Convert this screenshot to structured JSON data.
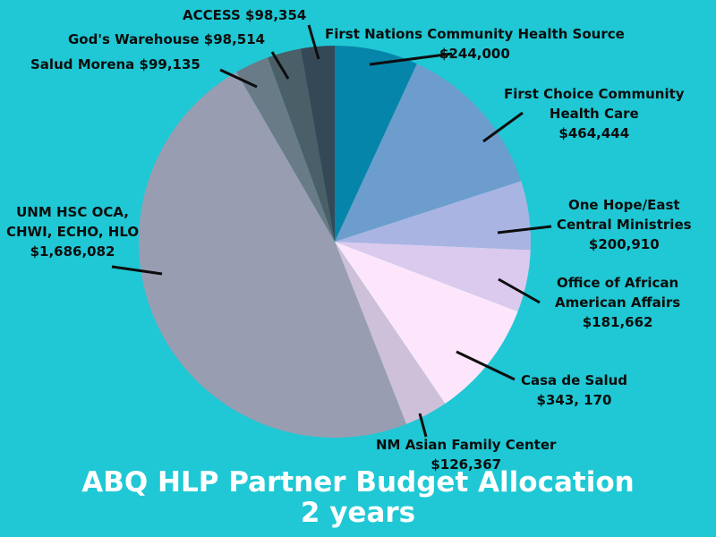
{
  "chart_data": {
    "type": "pie",
    "title": "ABQ HLP Partner Budget Allocation",
    "subtitle": "2 years",
    "slices": [
      {
        "label": "First Nations Community Health Source",
        "value_label": "$244,000",
        "value": 244000,
        "color": "#0685aa"
      },
      {
        "label": "First Choice Community Health Care",
        "value_label": "$464,444",
        "value": 464444,
        "color": "#6c9dcd"
      },
      {
        "label": "One Hope/East Central Ministries",
        "value_label": "$200,910",
        "value": 200910,
        "color": "#a9b4e3"
      },
      {
        "label": "Office of African American Affairs",
        "value_label": "$181,662",
        "value": 181662,
        "color": "#dcc9ee"
      },
      {
        "label": "Casa de Salud",
        "value_label": "$343, 170",
        "value": 343170,
        "color": "#fde6fb"
      },
      {
        "label": "NM Asian Family Center",
        "value_label": "$126,367",
        "value": 126367,
        "color": "#cec0d8"
      },
      {
        "label": "UNM HSC OCA, CHWI, ECHO, HLO",
        "value_label": "$1,686,082",
        "value": 1686082,
        "color": "#999db2"
      },
      {
        "label": "Salud Morena",
        "value_label": "$99,135",
        "value": 99135,
        "color": "#6a7b88"
      },
      {
        "label": "God's Warehouse",
        "value_label": "$98,514",
        "value": 98514,
        "color": "#4a5f68"
      },
      {
        "label": "ACCESS",
        "value_label": "$98,354",
        "value": 98354,
        "color": "#354855"
      }
    ]
  },
  "labels": {
    "first_nations": {
      "line1": "First Nations Community Health Source",
      "line2": "$244,000"
    },
    "first_choice": {
      "line1": "First Choice Community",
      "line2": "Health Care",
      "line3": "$464,444"
    },
    "one_hope": {
      "line1": "One Hope/East",
      "line2": "Central Ministries",
      "line3": "$200,910"
    },
    "oaaa": {
      "line1": "Office of African",
      "line2": "American Affairs",
      "line3": "$181,662"
    },
    "casa": {
      "line1": "Casa de Salud",
      "line2": "$343, 170"
    },
    "nm_asian": {
      "line1": "NM Asian Family Center",
      "line2": "$126,367"
    },
    "unm": {
      "line1": "UNM HSC OCA,",
      "line2": "CHWI, ECHO, HLO",
      "line3": "$1,686,082"
    },
    "salud": {
      "line1": "Salud Morena $99,135"
    },
    "gods": {
      "line1": "God's Warehouse $98,514"
    },
    "access": {
      "line1": "ACCESS $98,354"
    }
  }
}
